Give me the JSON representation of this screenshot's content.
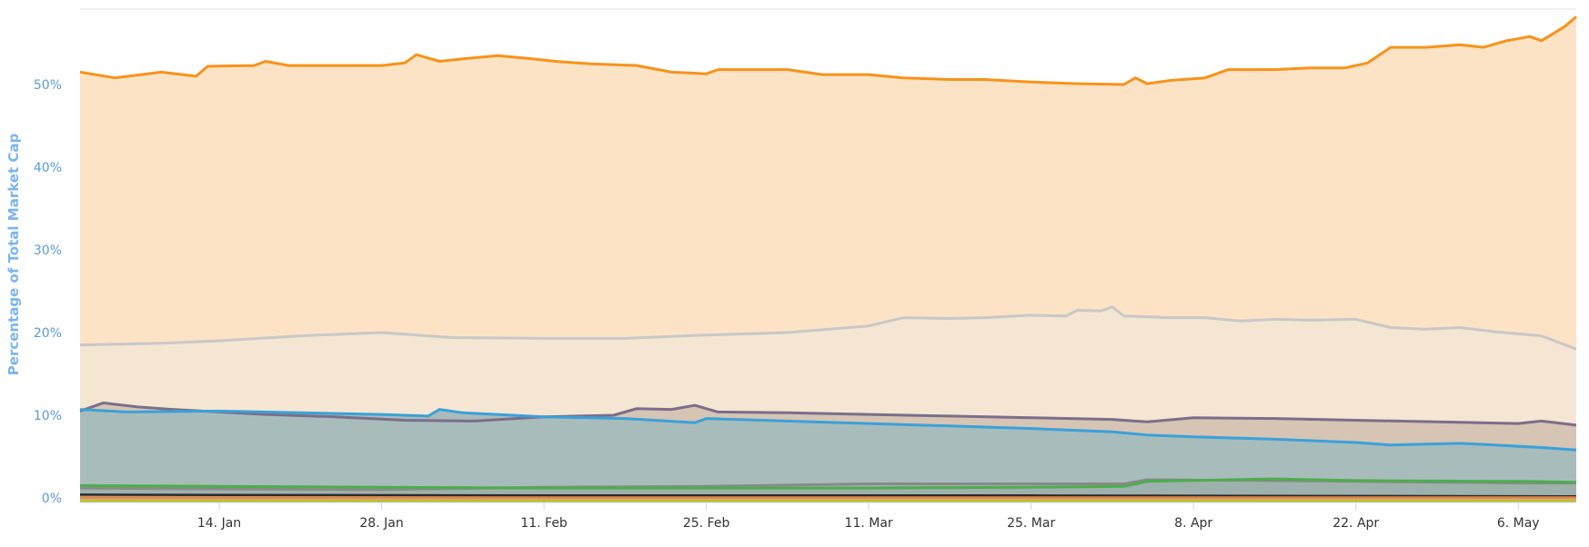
{
  "chart_data": {
    "type": "area",
    "title": "",
    "xlabel": "",
    "ylabel": "Percentage of Total Market Cap",
    "x_start": "2019-01-02",
    "x_end": "2019-05-11",
    "x_ticks": [
      {
        "date": "2019-01-14",
        "label": "14. Jan"
      },
      {
        "date": "2019-01-28",
        "label": "28. Jan"
      },
      {
        "date": "2019-02-11",
        "label": "11. Feb"
      },
      {
        "date": "2019-02-25",
        "label": "25. Feb"
      },
      {
        "date": "2019-03-11",
        "label": "11. Mar"
      },
      {
        "date": "2019-03-25",
        "label": "25. Mar"
      },
      {
        "date": "2019-04-08",
        "label": "8. Apr"
      },
      {
        "date": "2019-04-22",
        "label": "22. Apr"
      },
      {
        "date": "2019-05-06",
        "label": "6. May"
      }
    ],
    "y_ticks": [
      {
        "value": 0,
        "label": "0%"
      },
      {
        "value": 10,
        "label": "10%"
      },
      {
        "value": 20,
        "label": "20%"
      },
      {
        "value": 30,
        "label": "30%"
      },
      {
        "value": 40,
        "label": "40%"
      },
      {
        "value": 50,
        "label": "50%"
      }
    ],
    "ylim": [
      0,
      59
    ],
    "grid": true,
    "series": [
      {
        "color": "#f7931a",
        "fill": "#fde3c6",
        "points": [
          [
            "2019-01-02",
            51.5
          ],
          [
            "2019-01-05",
            50.8
          ],
          [
            "2019-01-09",
            51.5
          ],
          [
            "2019-01-12",
            51.0
          ],
          [
            "2019-01-13",
            52.2
          ],
          [
            "2019-01-17",
            52.3
          ],
          [
            "2019-01-18",
            52.8
          ],
          [
            "2019-01-20",
            52.3
          ],
          [
            "2019-01-24",
            52.3
          ],
          [
            "2019-01-28",
            52.3
          ],
          [
            "2019-01-30",
            52.6
          ],
          [
            "2019-01-31",
            53.6
          ],
          [
            "2019-02-02",
            52.8
          ],
          [
            "2019-02-04",
            53.1
          ],
          [
            "2019-02-07",
            53.5
          ],
          [
            "2019-02-10",
            53.1
          ],
          [
            "2019-02-12",
            52.8
          ],
          [
            "2019-02-15",
            52.5
          ],
          [
            "2019-02-19",
            52.3
          ],
          [
            "2019-02-22",
            51.5
          ],
          [
            "2019-02-25",
            51.3
          ],
          [
            "2019-02-26",
            51.8
          ],
          [
            "2019-02-28",
            51.8
          ],
          [
            "2019-03-04",
            51.8
          ],
          [
            "2019-03-07",
            51.2
          ],
          [
            "2019-03-11",
            51.2
          ],
          [
            "2019-03-14",
            50.8
          ],
          [
            "2019-03-18",
            50.6
          ],
          [
            "2019-03-21",
            50.6
          ],
          [
            "2019-03-25",
            50.3
          ],
          [
            "2019-03-29",
            50.1
          ],
          [
            "2019-04-02",
            50.0
          ],
          [
            "2019-04-03",
            50.8
          ],
          [
            "2019-04-04",
            50.1
          ],
          [
            "2019-04-06",
            50.5
          ],
          [
            "2019-04-09",
            50.8
          ],
          [
            "2019-04-11",
            51.8
          ],
          [
            "2019-04-15",
            51.8
          ],
          [
            "2019-04-18",
            52.0
          ],
          [
            "2019-04-21",
            52.0
          ],
          [
            "2019-04-23",
            52.6
          ],
          [
            "2019-04-25",
            54.5
          ],
          [
            "2019-04-28",
            54.5
          ],
          [
            "2019-05-01",
            54.8
          ],
          [
            "2019-05-03",
            54.5
          ],
          [
            "2019-05-05",
            55.3
          ],
          [
            "2019-05-07",
            55.8
          ],
          [
            "2019-05-08",
            55.3
          ],
          [
            "2019-05-10",
            57.0
          ],
          [
            "2019-05-11",
            58.2
          ]
        ]
      },
      {
        "color": "#c8c8c8",
        "fill": "#f5e6d3",
        "points": [
          [
            "2019-01-02",
            18.5
          ],
          [
            "2019-01-09",
            18.7
          ],
          [
            "2019-01-14",
            19.0
          ],
          [
            "2019-01-21",
            19.6
          ],
          [
            "2019-01-28",
            20.0
          ],
          [
            "2019-02-03",
            19.4
          ],
          [
            "2019-02-11",
            19.3
          ],
          [
            "2019-02-18",
            19.3
          ],
          [
            "2019-02-25",
            19.7
          ],
          [
            "2019-03-04",
            20.0
          ],
          [
            "2019-03-11",
            20.8
          ],
          [
            "2019-03-14",
            21.8
          ],
          [
            "2019-03-18",
            21.7
          ],
          [
            "2019-03-21",
            21.8
          ],
          [
            "2019-03-25",
            22.1
          ],
          [
            "2019-03-28",
            22.0
          ],
          [
            "2019-03-29",
            22.7
          ],
          [
            "2019-03-31",
            22.6
          ],
          [
            "2019-04-01",
            23.1
          ],
          [
            "2019-04-02",
            22.0
          ],
          [
            "2019-04-06",
            21.8
          ],
          [
            "2019-04-09",
            21.8
          ],
          [
            "2019-04-12",
            21.4
          ],
          [
            "2019-04-15",
            21.6
          ],
          [
            "2019-04-18",
            21.5
          ],
          [
            "2019-04-22",
            21.6
          ],
          [
            "2019-04-25",
            20.6
          ],
          [
            "2019-04-28",
            20.4
          ],
          [
            "2019-05-01",
            20.6
          ],
          [
            "2019-05-04",
            20.1
          ],
          [
            "2019-05-08",
            19.6
          ],
          [
            "2019-05-11",
            18.0
          ]
        ]
      },
      {
        "color": "#7b6e8a",
        "fill": "#d6c4b5",
        "points": [
          [
            "2019-01-02",
            10.5
          ],
          [
            "2019-01-04",
            11.5
          ],
          [
            "2019-01-07",
            11.0
          ],
          [
            "2019-01-10",
            10.7
          ],
          [
            "2019-01-14",
            10.4
          ],
          [
            "2019-01-18",
            10.1
          ],
          [
            "2019-01-24",
            9.8
          ],
          [
            "2019-01-30",
            9.4
          ],
          [
            "2019-02-05",
            9.3
          ],
          [
            "2019-02-11",
            9.8
          ],
          [
            "2019-02-14",
            9.9
          ],
          [
            "2019-02-17",
            10.0
          ],
          [
            "2019-02-19",
            10.8
          ],
          [
            "2019-02-22",
            10.7
          ],
          [
            "2019-02-24",
            11.2
          ],
          [
            "2019-02-26",
            10.4
          ],
          [
            "2019-03-04",
            10.3
          ],
          [
            "2019-03-11",
            10.1
          ],
          [
            "2019-03-18",
            9.9
          ],
          [
            "2019-03-25",
            9.7
          ],
          [
            "2019-04-01",
            9.5
          ],
          [
            "2019-04-04",
            9.2
          ],
          [
            "2019-04-08",
            9.7
          ],
          [
            "2019-04-15",
            9.6
          ],
          [
            "2019-04-22",
            9.4
          ],
          [
            "2019-04-29",
            9.2
          ],
          [
            "2019-05-06",
            9.0
          ],
          [
            "2019-05-08",
            9.3
          ],
          [
            "2019-05-11",
            8.8
          ]
        ]
      },
      {
        "color": "#3aa1d9",
        "fill": "#a9bcbc",
        "points": [
          [
            "2019-01-02",
            10.7
          ],
          [
            "2019-01-06",
            10.4
          ],
          [
            "2019-01-14",
            10.5
          ],
          [
            "2019-01-21",
            10.3
          ],
          [
            "2019-01-28",
            10.1
          ],
          [
            "2019-02-01",
            9.9
          ],
          [
            "2019-02-02",
            10.7
          ],
          [
            "2019-02-04",
            10.3
          ],
          [
            "2019-02-11",
            9.8
          ],
          [
            "2019-02-18",
            9.6
          ],
          [
            "2019-02-24",
            9.1
          ],
          [
            "2019-02-25",
            9.6
          ],
          [
            "2019-03-04",
            9.3
          ],
          [
            "2019-03-11",
            9.0
          ],
          [
            "2019-03-18",
            8.7
          ],
          [
            "2019-03-25",
            8.4
          ],
          [
            "2019-04-01",
            8.0
          ],
          [
            "2019-04-04",
            7.6
          ],
          [
            "2019-04-08",
            7.4
          ],
          [
            "2019-04-15",
            7.1
          ],
          [
            "2019-04-22",
            6.7
          ],
          [
            "2019-04-25",
            6.4
          ],
          [
            "2019-05-01",
            6.6
          ],
          [
            "2019-05-04",
            6.4
          ],
          [
            "2019-05-08",
            6.1
          ],
          [
            "2019-05-11",
            5.8
          ]
        ]
      },
      {
        "color": "#8a8a8a",
        "fill": "#9fb1ad",
        "points": [
          [
            "2019-01-02",
            1.2
          ],
          [
            "2019-01-14",
            1.1
          ],
          [
            "2019-01-28",
            1.0
          ],
          [
            "2019-02-11",
            1.3
          ],
          [
            "2019-02-25",
            1.4
          ],
          [
            "2019-03-11",
            1.7
          ],
          [
            "2019-03-25",
            1.7
          ],
          [
            "2019-04-02",
            1.7
          ],
          [
            "2019-04-04",
            2.2
          ],
          [
            "2019-04-15",
            2.1
          ],
          [
            "2019-04-22",
            2.0
          ],
          [
            "2019-05-06",
            1.8
          ],
          [
            "2019-05-11",
            1.8
          ]
        ]
      },
      {
        "color": "#4cae4c",
        "fill": "#9fb1ad",
        "points": [
          [
            "2019-01-02",
            1.5
          ],
          [
            "2019-01-14",
            1.4
          ],
          [
            "2019-01-28",
            1.3
          ],
          [
            "2019-02-11",
            1.2
          ],
          [
            "2019-02-25",
            1.2
          ],
          [
            "2019-03-11",
            1.2
          ],
          [
            "2019-03-25",
            1.3
          ],
          [
            "2019-04-02",
            1.4
          ],
          [
            "2019-04-04",
            2.0
          ],
          [
            "2019-04-15",
            2.3
          ],
          [
            "2019-04-22",
            2.1
          ],
          [
            "2019-05-06",
            2.0
          ],
          [
            "2019-05-11",
            1.9
          ]
        ]
      },
      {
        "color": "#2b2b2b",
        "fill": "#9fb1ad",
        "points": [
          [
            "2019-01-02",
            0.4
          ],
          [
            "2019-02-11",
            0.3
          ],
          [
            "2019-03-25",
            0.3
          ],
          [
            "2019-05-11",
            0.2
          ]
        ]
      },
      {
        "color": "#e8834a",
        "fill": "#c7b07a",
        "points": [
          [
            "2019-01-02",
            0.05
          ],
          [
            "2019-05-11",
            0.05
          ]
        ]
      },
      {
        "color": "#b7c21b",
        "fill": "#c7c54a",
        "points": [
          [
            "2019-01-02",
            -0.4
          ],
          [
            "2019-05-11",
            -0.4
          ]
        ]
      }
    ]
  }
}
